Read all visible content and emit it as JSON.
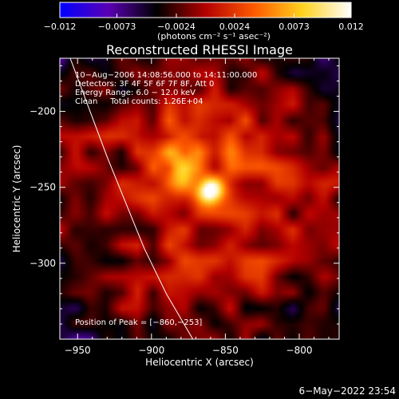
{
  "chart_data": {
    "type": "heatmap",
    "title": "Reconstructed RHESSI Image",
    "xlabel": "Heliocentric X (arcsec)",
    "ylabel": "Heliocentric Y (arcsec)",
    "xlim": [
      -962,
      -773
    ],
    "ylim": [
      -350,
      -165
    ],
    "x_ticks": [
      -950,
      -900,
      -850,
      -800
    ],
    "y_ticks": [
      -200,
      -250,
      -300
    ],
    "x_tick_labels": [
      "−950",
      "−900",
      "−850",
      "−800"
    ],
    "y_tick_labels": [
      "−200",
      "−250",
      "−300"
    ],
    "colorbar": {
      "range": [
        -0.012,
        0.012
      ],
      "ticks": [
        -0.012,
        -0.0073,
        -0.0024,
        0.0024,
        0.0073,
        0.012
      ],
      "tick_labels": [
        "−0.012",
        "−0.0073",
        "−0.0024",
        "0.0024",
        "0.0073",
        "0.012"
      ],
      "unit_label": "(photons cm⁻² s⁻¹ asec⁻²)",
      "colors": [
        "#0000ff",
        "#5a00b4",
        "#000000",
        "#b40000",
        "#ff5a00",
        "#ffd21e",
        "#ffffff"
      ]
    },
    "peak": {
      "x": -860,
      "y": -253,
      "value": 0.012
    },
    "secondary_source": {
      "x": -880,
      "y": -240,
      "value": 0.0073
    },
    "limb_curve": [
      [
        -955,
        -165
      ],
      [
        -930,
        -230
      ],
      [
        -905,
        -290
      ],
      [
        -890,
        -320
      ],
      [
        -872,
        -350
      ]
    ],
    "info_lines": [
      "10−Aug−2006 14:08:56.000 to 14:11:00.000",
      "Detectors: 3F 4F 5F 6F 7F 8F, Att 0",
      "Energy Range: 6.0 − 12.0 keV",
      "Clean     Total counts: 1.26E+04"
    ],
    "peak_label": "Position of Peak = [−860,−253]",
    "timestamp": "6−May−2022 23:54"
  }
}
